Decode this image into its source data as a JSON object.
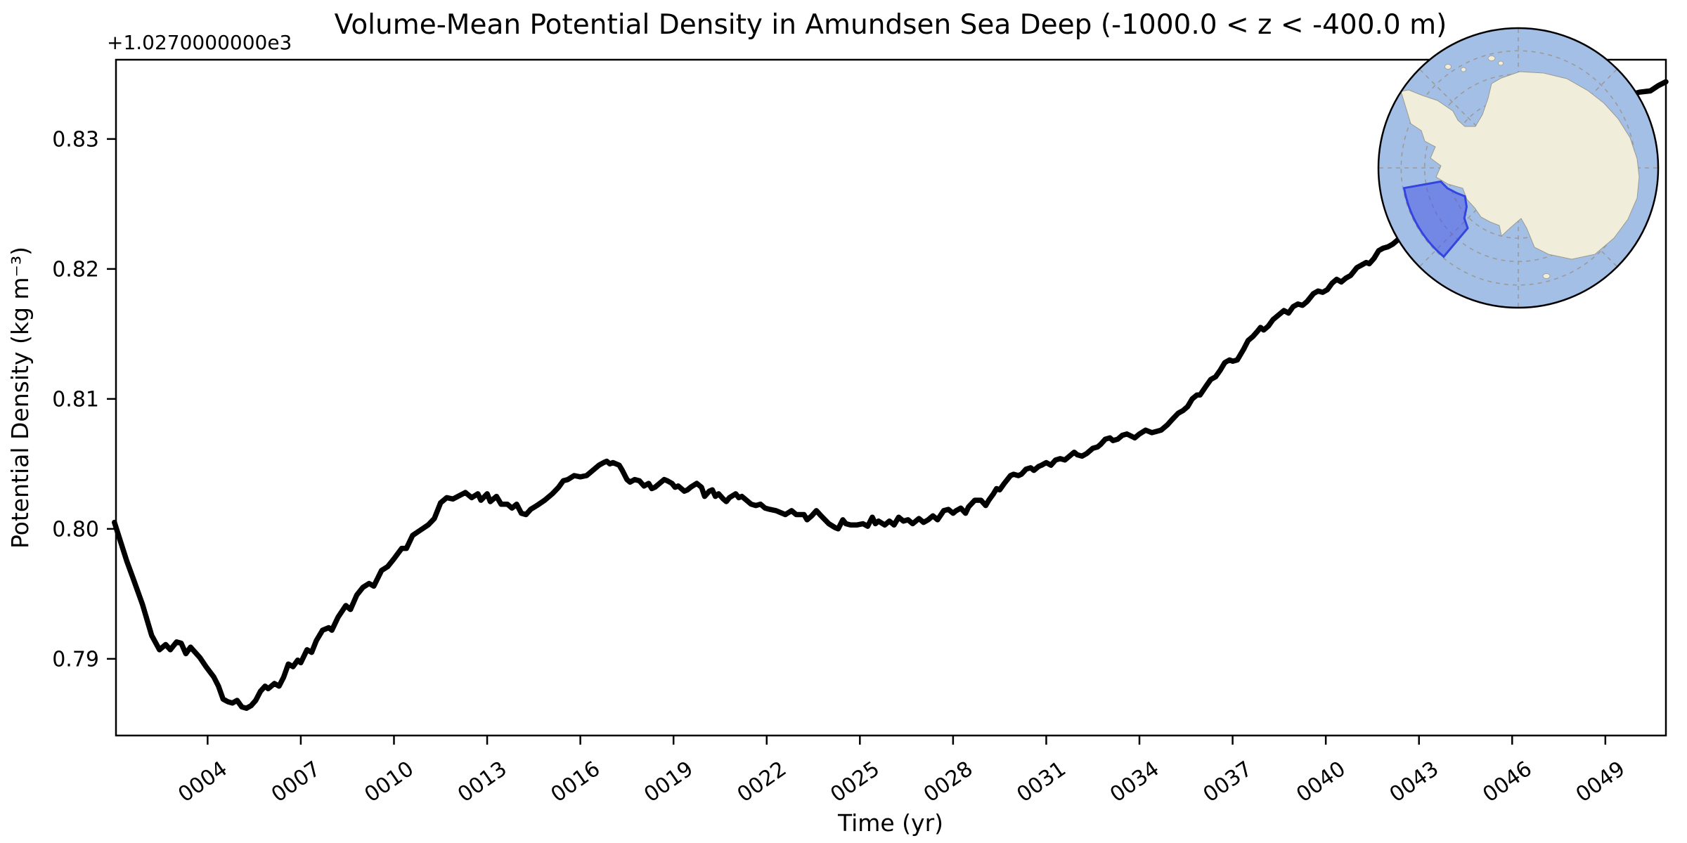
{
  "figure": {
    "background": "#ffffff"
  },
  "chart_data": {
    "type": "line",
    "title": "Volume-Mean Potential Density in Amundsen Sea Deep (-1000.0 < z < -400.0 m)",
    "xlabel": "Time (yr)",
    "ylabel": "Potential Density (kg m⁻³)",
    "y_offset_text": "+1.0270000000e3",
    "value_offset": 1027.0,
    "xlim": [
      1.05,
      50.95
    ],
    "ylim": [
      0.7841,
      0.8361
    ],
    "grid": false,
    "legend": null,
    "xticks": {
      "values": [
        4,
        7,
        10,
        13,
        16,
        19,
        22,
        25,
        28,
        31,
        34,
        37,
        40,
        43,
        46,
        49
      ],
      "labels": [
        "0004",
        "0007",
        "0010",
        "0013",
        "0016",
        "0019",
        "0022",
        "0025",
        "0028",
        "0031",
        "0034",
        "0037",
        "0040",
        "0043",
        "0046",
        "0049"
      ],
      "rotation_deg": 35
    },
    "yticks": {
      "values": [
        0.79,
        0.8,
        0.81,
        0.82,
        0.83
      ],
      "labels": [
        "0.79",
        "0.80",
        "0.81",
        "0.82",
        "0.83"
      ]
    },
    "line_style": {
      "color": "#000000",
      "width": 7.5
    },
    "series": [
      {
        "name": "volume_mean_potential_density",
        "x": [
          1.0,
          1.2,
          1.4,
          1.6,
          1.9,
          2.2,
          2.45,
          2.65,
          2.8,
          3.0,
          3.15,
          3.3,
          3.45,
          3.6,
          3.75,
          3.95,
          4.2,
          4.35,
          4.5,
          4.65,
          4.8,
          4.95,
          5.1,
          5.25,
          5.4,
          5.55,
          5.7,
          5.85,
          5.95,
          6.15,
          6.3,
          6.45,
          6.6,
          6.75,
          6.9,
          7.0,
          7.2,
          7.35,
          7.5,
          7.7,
          7.9,
          8.0,
          8.2,
          8.45,
          8.6,
          8.8,
          9.0,
          9.2,
          9.35,
          9.6,
          9.8,
          10.0,
          10.25,
          10.4,
          10.6,
          10.85,
          11.1,
          11.3,
          11.5,
          11.7,
          11.9,
          12.3,
          12.5,
          12.7,
          12.8,
          13.0,
          13.1,
          13.3,
          13.45,
          13.65,
          13.8,
          13.95,
          14.1,
          14.25,
          14.4,
          14.6,
          14.85,
          15.1,
          15.3,
          15.45,
          15.6,
          15.8,
          16.0,
          16.2,
          16.4,
          16.6,
          16.75,
          16.85,
          16.95,
          17.05,
          17.25,
          17.35,
          17.5,
          17.6,
          17.75,
          17.9,
          18.05,
          18.2,
          18.3,
          18.4,
          18.55,
          18.7,
          18.8,
          18.95,
          19.05,
          19.15,
          19.35,
          19.45,
          19.55,
          19.75,
          19.9,
          20.0,
          20.15,
          20.25,
          20.35,
          20.45,
          20.6,
          20.7,
          20.8,
          21.0,
          21.1,
          21.2,
          21.35,
          21.5,
          21.65,
          21.8,
          21.95,
          22.1,
          22.3,
          22.6,
          22.8,
          22.95,
          23.2,
          23.3,
          23.45,
          23.6,
          23.75,
          24.0,
          24.2,
          24.3,
          24.45,
          24.55,
          24.7,
          24.9,
          25.1,
          25.25,
          25.4,
          25.5,
          25.6,
          25.8,
          25.95,
          26.1,
          26.25,
          26.4,
          26.55,
          26.7,
          26.9,
          27.05,
          27.2,
          27.35,
          27.5,
          27.7,
          27.85,
          28.0,
          28.1,
          28.25,
          28.4,
          28.5,
          28.7,
          28.9,
          29.05,
          29.15,
          29.3,
          29.4,
          29.5,
          29.65,
          29.85,
          29.95,
          30.1,
          30.2,
          30.35,
          30.5,
          30.6,
          30.75,
          30.85,
          31.0,
          31.15,
          31.3,
          31.45,
          31.6,
          31.75,
          31.9,
          32.0,
          32.15,
          32.3,
          32.5,
          32.65,
          32.75,
          32.9,
          33.05,
          33.15,
          33.3,
          33.45,
          33.6,
          33.85,
          34.0,
          34.2,
          34.4,
          34.55,
          34.7,
          34.9,
          35.05,
          35.25,
          35.4,
          35.55,
          35.7,
          35.85,
          35.95,
          36.15,
          36.3,
          36.45,
          36.6,
          36.75,
          36.9,
          37.0,
          37.15,
          37.35,
          37.5,
          37.65,
          37.8,
          37.9,
          38.0,
          38.15,
          38.3,
          38.5,
          38.65,
          38.8,
          38.95,
          39.1,
          39.25,
          39.4,
          39.6,
          39.75,
          39.9,
          40.05,
          40.2,
          40.35,
          40.5,
          40.65,
          40.8,
          41.0,
          41.15,
          41.3,
          41.4,
          41.55,
          41.7,
          41.85,
          42.0,
          42.15,
          42.3,
          42.6,
          43.0,
          43.4,
          43.8,
          44.2,
          44.6,
          45.0,
          45.4,
          45.8,
          46.2,
          46.6,
          47.0,
          47.4,
          47.8,
          48.2,
          48.6,
          49.0,
          49.4,
          49.8,
          50.1,
          50.45,
          50.7,
          50.95
        ],
        "y": [
          0.8005,
          0.799,
          0.7975,
          0.7962,
          0.7942,
          0.7918,
          0.7907,
          0.7911,
          0.7907,
          0.7913,
          0.7912,
          0.7904,
          0.7909,
          0.7905,
          0.7901,
          0.7894,
          0.7886,
          0.7879,
          0.7869,
          0.7867,
          0.7866,
          0.7868,
          0.7863,
          0.7862,
          0.7864,
          0.7868,
          0.7875,
          0.7879,
          0.7877,
          0.7881,
          0.7879,
          0.7886,
          0.7896,
          0.7894,
          0.7899,
          0.7897,
          0.7907,
          0.7905,
          0.7914,
          0.7922,
          0.7924,
          0.7922,
          0.7932,
          0.7941,
          0.7938,
          0.7949,
          0.7955,
          0.7958,
          0.7956,
          0.7968,
          0.7971,
          0.7977,
          0.7985,
          0.7985,
          0.7995,
          0.7999,
          0.8003,
          0.8008,
          0.802,
          0.8024,
          0.8023,
          0.8028,
          0.8024,
          0.8027,
          0.8022,
          0.8027,
          0.8021,
          0.8025,
          0.8019,
          0.8019,
          0.8016,
          0.8019,
          0.8012,
          0.8011,
          0.8015,
          0.8018,
          0.8022,
          0.8027,
          0.8032,
          0.8037,
          0.8038,
          0.8041,
          0.804,
          0.8041,
          0.8045,
          0.8049,
          0.8051,
          0.8052,
          0.805,
          0.8051,
          0.8049,
          0.8045,
          0.8038,
          0.8036,
          0.8038,
          0.8037,
          0.8033,
          0.8035,
          0.8031,
          0.8032,
          0.8035,
          0.8038,
          0.8037,
          0.8035,
          0.8032,
          0.8033,
          0.8029,
          0.803,
          0.8032,
          0.8035,
          0.8032,
          0.8025,
          0.8029,
          0.803,
          0.8025,
          0.8027,
          0.8023,
          0.8021,
          0.8024,
          0.8027,
          0.8024,
          0.8025,
          0.8022,
          0.8019,
          0.8018,
          0.8019,
          0.8016,
          0.8015,
          0.8014,
          0.8011,
          0.8014,
          0.8011,
          0.8011,
          0.8007,
          0.801,
          0.8014,
          0.801,
          0.8004,
          0.8001,
          0.8,
          0.8007,
          0.8004,
          0.8003,
          0.8003,
          0.8004,
          0.8002,
          0.8009,
          0.8004,
          0.8006,
          0.8003,
          0.8006,
          0.8003,
          0.8009,
          0.8006,
          0.8007,
          0.8004,
          0.8008,
          0.8005,
          0.8007,
          0.801,
          0.8007,
          0.8014,
          0.8015,
          0.8012,
          0.8014,
          0.8016,
          0.8012,
          0.8017,
          0.8022,
          0.8022,
          0.8018,
          0.8022,
          0.8027,
          0.8031,
          0.803,
          0.8035,
          0.8041,
          0.8042,
          0.8041,
          0.8042,
          0.8046,
          0.8047,
          0.8045,
          0.8048,
          0.8049,
          0.8051,
          0.8049,
          0.8053,
          0.8054,
          0.8053,
          0.8056,
          0.8059,
          0.8057,
          0.8056,
          0.8058,
          0.8062,
          0.8063,
          0.8065,
          0.8069,
          0.807,
          0.8068,
          0.8069,
          0.8072,
          0.8073,
          0.807,
          0.8073,
          0.8076,
          0.8074,
          0.8075,
          0.8076,
          0.808,
          0.8084,
          0.8089,
          0.8091,
          0.8094,
          0.81,
          0.8103,
          0.8103,
          0.811,
          0.8115,
          0.8117,
          0.8122,
          0.8128,
          0.813,
          0.8129,
          0.813,
          0.8138,
          0.8145,
          0.8148,
          0.8152,
          0.8155,
          0.8153,
          0.8156,
          0.8161,
          0.8165,
          0.8168,
          0.8166,
          0.8171,
          0.8173,
          0.8172,
          0.8175,
          0.8181,
          0.8183,
          0.8182,
          0.8184,
          0.8189,
          0.8192,
          0.819,
          0.8193,
          0.8195,
          0.8201,
          0.8203,
          0.8205,
          0.8204,
          0.8208,
          0.8214,
          0.8216,
          0.8217,
          0.8219,
          0.8222,
          0.8228,
          0.8234,
          0.8241,
          0.8247,
          0.8252,
          0.8259,
          0.8266,
          0.8271,
          0.8278,
          0.8284,
          0.8291,
          0.8297,
          0.8302,
          0.8309,
          0.8315,
          0.8322,
          0.8328,
          0.8331,
          0.8334,
          0.8336,
          0.8337,
          0.8341,
          0.8344
        ]
      }
    ],
    "inset_map": {
      "description": "South polar stereographic map of Antarctica with the Amundsen Sea sector highlighted",
      "ocean_color": "#a4bfe5",
      "land_color": "#f0eedb",
      "coast_color": "#9a9a90",
      "graticule_color": "#9a9a9a",
      "border_color": "#000000",
      "region_fill": "#4b5ae4",
      "region_fill_opacity": 0.55,
      "region_outline": "#3444e0"
    }
  }
}
